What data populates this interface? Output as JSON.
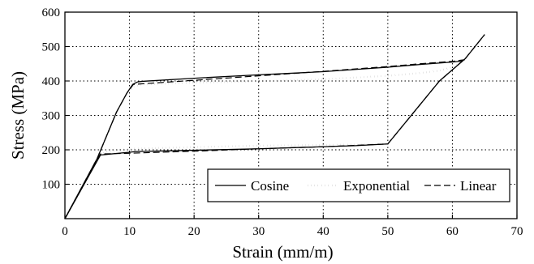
{
  "chart_data": {
    "type": "line",
    "title": "",
    "xlabel": "Strain  (mm/m)",
    "ylabel": "Stress (MPa)",
    "xlim": [
      0,
      70
    ],
    "ylim": [
      0,
      600
    ],
    "x_ticks": [
      0,
      10,
      20,
      30,
      40,
      50,
      60,
      70
    ],
    "x_tick_labels": [
      "0",
      "10",
      "20",
      "30",
      "40",
      "50",
      "60",
      "70"
    ],
    "y_ticks": [
      100,
      200,
      300,
      400,
      500,
      600
    ],
    "y_tick_labels": [
      "100",
      "200",
      "300",
      "400",
      "500",
      "600"
    ],
    "grid": true,
    "legend_position": "lower-right",
    "series": [
      {
        "name": "Cosine",
        "line_style": "solid",
        "x": [
          0,
          5.5,
          10,
          11,
          30,
          45,
          50,
          58,
          62,
          65
        ],
        "y": [
          0,
          185,
          193,
          195,
          203,
          212,
          217,
          400,
          465,
          535
        ],
        "x2": [
          0,
          5,
          8,
          9.6,
          10.5,
          11.2,
          12,
          20,
          30,
          40,
          50,
          55,
          60,
          61.5
        ],
        "y2": [
          0,
          175,
          310,
          365,
          390,
          397,
          399,
          408,
          418,
          427,
          440,
          448,
          455,
          458
        ]
      },
      {
        "name": "Exponential",
        "line_style": "dotted",
        "x": [
          0,
          5.5,
          6.5,
          10,
          20,
          30,
          40,
          50,
          58,
          62,
          65
        ],
        "y": [
          0,
          185,
          195,
          203,
          208,
          212,
          214,
          217,
          400,
          465,
          535
        ],
        "x2": [
          0,
          5,
          8,
          9.8,
          10.8,
          12,
          20,
          30,
          40,
          50,
          55,
          58,
          60,
          61.5
        ],
        "y2": [
          0,
          175,
          310,
          370,
          385,
          390,
          395,
          399,
          405,
          415,
          423,
          430,
          440,
          458
        ]
      },
      {
        "name": "Linear",
        "line_style": "dashed",
        "x": [
          0,
          5.5,
          10,
          20,
          30,
          40,
          50,
          58,
          62,
          65
        ],
        "y": [
          0,
          188,
          190,
          196,
          203,
          209,
          217,
          400,
          465,
          535
        ],
        "x2": [
          0,
          5,
          8,
          9.6,
          10.6,
          20,
          30,
          40,
          50,
          55,
          60,
          62
        ],
        "y2": [
          0,
          175,
          310,
          365,
          390,
          402,
          415,
          428,
          442,
          450,
          457,
          462
        ]
      }
    ]
  }
}
